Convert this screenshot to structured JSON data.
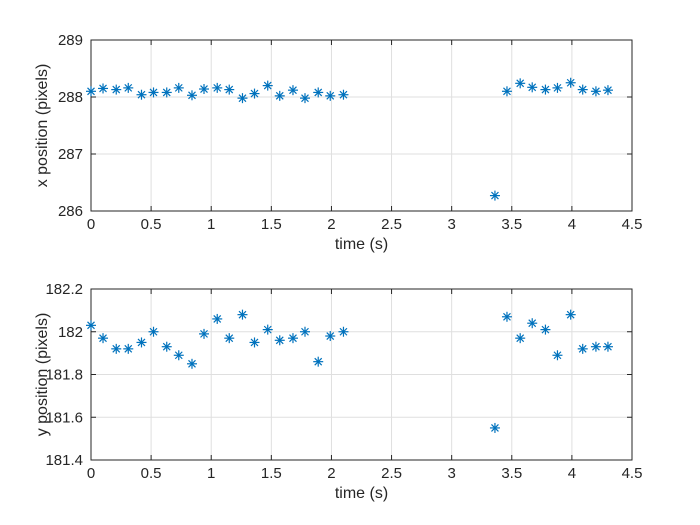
{
  "chart_data": [
    {
      "type": "scatter",
      "title": "",
      "xlabel": "time (s)",
      "ylabel": "x position (pixels)",
      "xlim": [
        0,
        4.5
      ],
      "ylim": [
        286,
        289
      ],
      "xticks": [
        "0",
        "0.5",
        "1",
        "1.5",
        "2",
        "2.5",
        "3",
        "3.5",
        "4",
        "4.5"
      ],
      "yticks": [
        "286",
        "287",
        "288",
        "289"
      ],
      "grid": true,
      "marker": "asterisk",
      "color": "#0072bd",
      "series": [
        {
          "x": [
            0,
            0.1,
            0.21,
            0.31,
            0.42,
            0.52,
            0.63,
            0.73,
            0.84,
            0.94,
            1.05,
            1.15,
            1.26,
            1.36,
            1.47,
            1.57,
            1.68,
            1.78,
            1.89,
            1.99,
            2.1,
            3.36,
            3.46,
            3.57,
            3.67,
            3.78,
            3.88,
            3.99,
            4.09,
            4.2,
            4.3
          ],
          "y": [
            288.1,
            288.15,
            288.13,
            288.16,
            288.04,
            288.08,
            288.08,
            288.16,
            288.03,
            288.14,
            288.16,
            288.13,
            287.98,
            288.06,
            288.2,
            288.02,
            288.12,
            287.98,
            288.08,
            288.02,
            288.04,
            286.27,
            288.1,
            288.24,
            288.17,
            288.13,
            288.16,
            288.25,
            288.13,
            288.1,
            288.12
          ]
        }
      ]
    },
    {
      "type": "scatter",
      "title": "",
      "xlabel": "time (s)",
      "ylabel": "y position (pixels)",
      "xlim": [
        0,
        4.5
      ],
      "ylim": [
        181.4,
        182.2
      ],
      "xticks": [
        "0",
        "0.5",
        "1",
        "1.5",
        "2",
        "2.5",
        "3",
        "3.5",
        "4",
        "4.5"
      ],
      "yticks": [
        "181.4",
        "181.6",
        "181.8",
        "182",
        "182.2"
      ],
      "grid": true,
      "marker": "asterisk",
      "color": "#0072bd",
      "series": [
        {
          "x": [
            0,
            0.1,
            0.21,
            0.31,
            0.42,
            0.52,
            0.63,
            0.73,
            0.84,
            0.94,
            1.05,
            1.15,
            1.26,
            1.36,
            1.47,
            1.57,
            1.68,
            1.78,
            1.89,
            1.99,
            2.1,
            3.36,
            3.46,
            3.57,
            3.67,
            3.78,
            3.88,
            3.99,
            4.09,
            4.2,
            4.3
          ],
          "y": [
            182.03,
            181.97,
            181.92,
            181.92,
            181.95,
            182.0,
            181.93,
            181.89,
            181.85,
            181.99,
            182.06,
            181.97,
            182.08,
            181.95,
            182.01,
            181.96,
            181.97,
            182.0,
            181.86,
            181.98,
            182.0,
            181.55,
            182.07,
            181.97,
            182.04,
            182.01,
            181.89,
            182.08,
            181.92,
            181.93,
            181.93
          ]
        }
      ]
    }
  ]
}
